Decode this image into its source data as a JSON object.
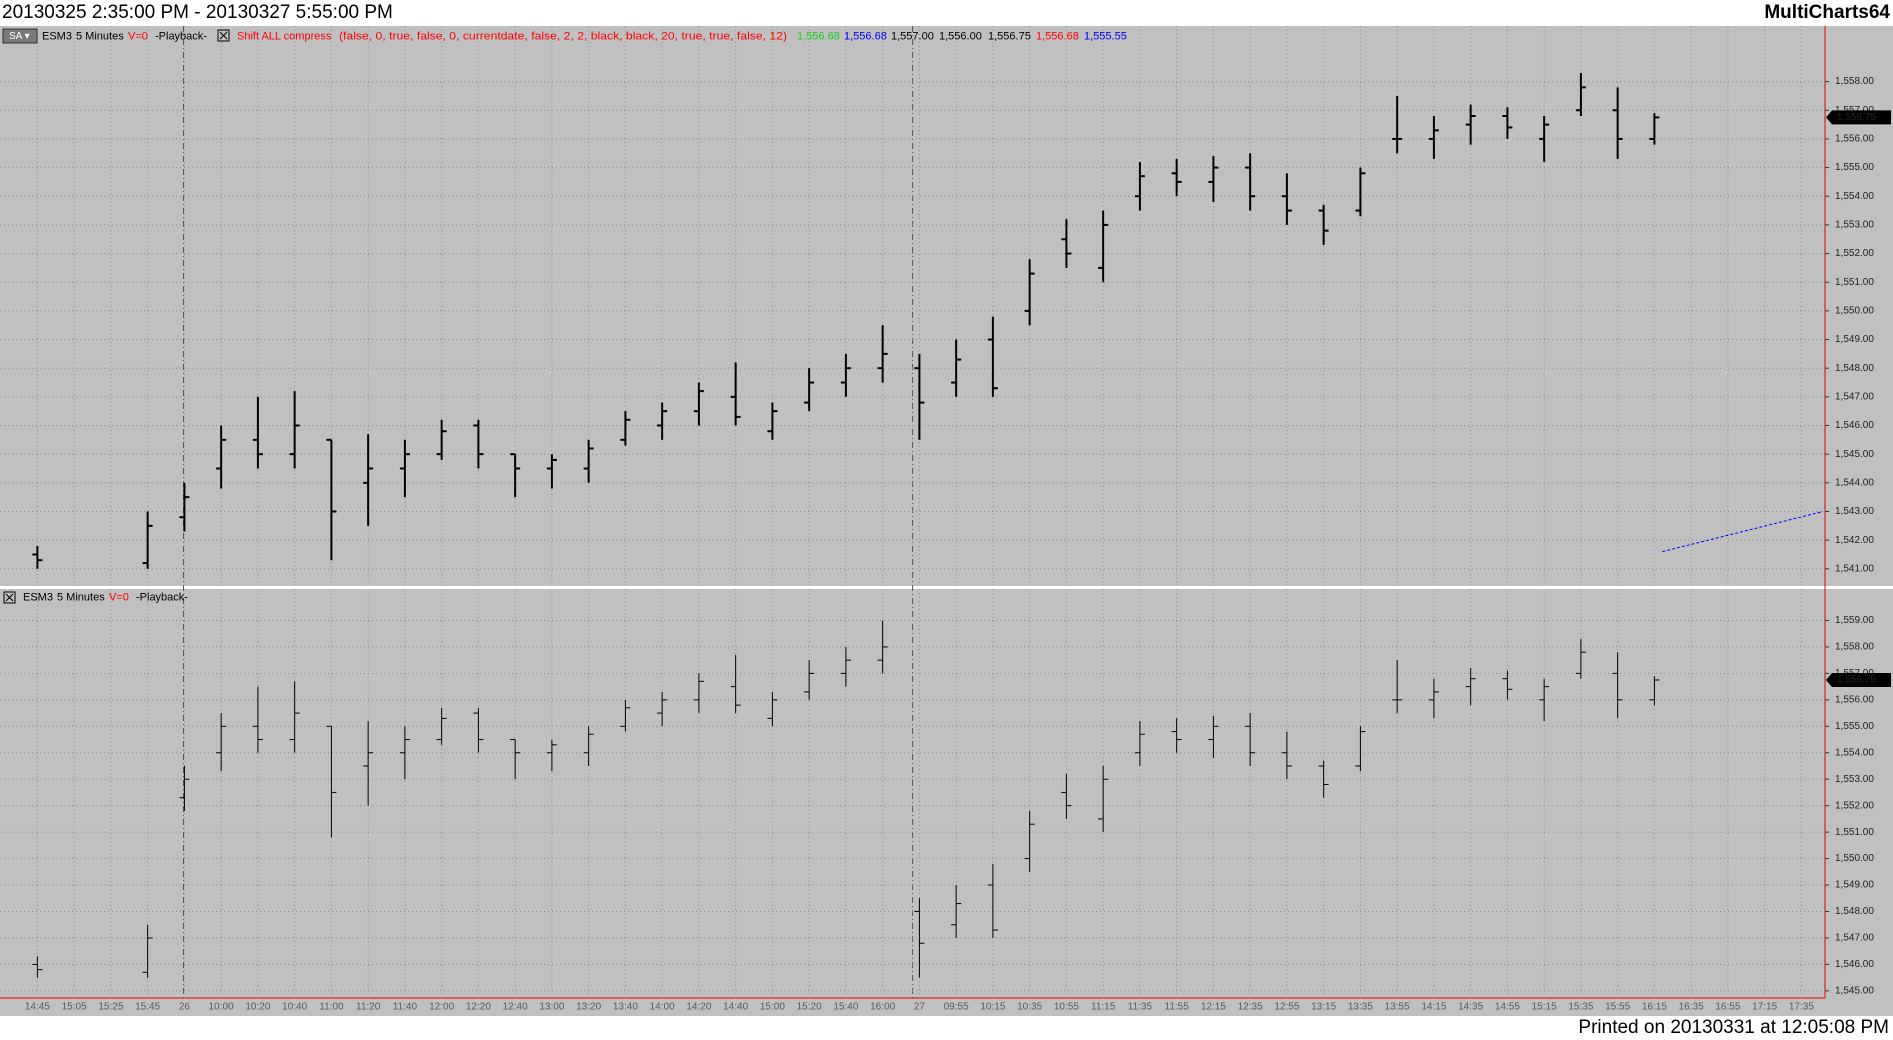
{
  "header": {
    "range": "20130325 2:35:00 PM - 20130327 5:55:00 PM",
    "app": "MultiCharts64"
  },
  "footer": "Printed on 20130331 at 12:05:08 PM",
  "chart_data": [
    {
      "type": "ohlc",
      "grid": true,
      "ylim": [
        1540.4,
        1559.94
      ],
      "yticks": [
        {
          "value": 1541,
          "label": "1,541.00"
        },
        {
          "value": 1542,
          "label": "1,542.00"
        },
        {
          "value": 1543,
          "label": "1,543.00"
        },
        {
          "value": 1544,
          "label": "1,544.00"
        },
        {
          "value": 1545,
          "label": "1,545.00"
        },
        {
          "value": 1546,
          "label": "1,546.00"
        },
        {
          "value": 1547,
          "label": "1,547.00"
        },
        {
          "value": 1548,
          "label": "1,548.00"
        },
        {
          "value": 1549,
          "label": "1,549.00"
        },
        {
          "value": 1550,
          "label": "1,550.00"
        },
        {
          "value": 1551,
          "label": "1,551.00"
        },
        {
          "value": 1552,
          "label": "1,552.00"
        },
        {
          "value": 1553,
          "label": "1,553.00"
        },
        {
          "value": 1554,
          "label": "1,554.00"
        },
        {
          "value": 1555,
          "label": "1,555.00"
        },
        {
          "value": 1556,
          "label": "1,556.00"
        },
        {
          "value": 1557,
          "label": "1,557.00"
        },
        {
          "value": 1558,
          "label": "1,558.00"
        }
      ],
      "series": [
        {
          "name": "ESM3",
          "interval": "5 Minutes",
          "volume": "V=0",
          "mode": "-Playback-",
          "color": "#000000",
          "open": [
            1541.5,
            null,
            null,
            1541.2,
            1542.8,
            1544.5,
            1545.5,
            1545,
            1545.5,
            1544,
            1544.5,
            1545,
            1546,
            1545,
            1544.5,
            1544.5,
            1545.5,
            1546,
            1546.5,
            1547,
            1545.8,
            1546.8,
            1547.5,
            1548,
            1548,
            1547.5,
            1549,
            1550,
            1552.5,
            1551.5,
            1554,
            1554.8,
            1554.5,
            1555,
            1554,
            1553.5,
            1553.5,
            1556,
            1556,
            1556.5,
            1556.8,
            1556,
            1557,
            1557,
            1556,
            null,
            null,
            null,
            null
          ],
          "high": [
            1541.8,
            null,
            null,
            1543,
            1544,
            1546,
            1547,
            1547.2,
            1545.5,
            1545.7,
            1545.5,
            1546.2,
            1546.2,
            1545,
            1545,
            1545.5,
            1546.5,
            1546.8,
            1547.5,
            1548.2,
            1546.8,
            1548,
            1548.5,
            1549.5,
            1548.5,
            1549,
            1549.8,
            1551.8,
            1553.2,
            1553.5,
            1555.2,
            1555.3,
            1555.4,
            1555.5,
            1554.8,
            1553.7,
            1555,
            1557.5,
            1556.8,
            1557.2,
            1557.1,
            1556.8,
            1558.3,
            1557.8,
            1556.9,
            null,
            null,
            null,
            null
          ],
          "low": [
            1541,
            null,
            null,
            1541,
            1542.3,
            1543.8,
            1544.5,
            1544.5,
            1541.3,
            1542.5,
            1543.5,
            1544.8,
            1544.5,
            1543.5,
            1543.8,
            1544,
            1545.3,
            1545.5,
            1546,
            1546,
            1545.5,
            1546.5,
            1547,
            1547.5,
            1545.5,
            1547,
            1547,
            1549.5,
            1551.5,
            1551,
            1553.5,
            1554,
            1553.8,
            1553.5,
            1553,
            1552.3,
            1553.3,
            1555.5,
            1555.3,
            1555.8,
            1556,
            1555.2,
            1556.8,
            1555.3,
            1555.8,
            null,
            null,
            null,
            null
          ],
          "close": [
            1541.3,
            null,
            null,
            1542.5,
            1543.5,
            1545.5,
            1545,
            1546,
            1543,
            1544.5,
            1545,
            1545.8,
            1545,
            1544.5,
            1544.8,
            1545.2,
            1546.2,
            1546.5,
            1547.2,
            1546.3,
            1546.5,
            1547.5,
            1548,
            1548.5,
            1546.8,
            1548.3,
            1547.3,
            1551.3,
            1552,
            1553,
            1554.7,
            1554.5,
            1555,
            1554,
            1553.5,
            1552.8,
            1554.8,
            1556,
            1556.3,
            1556.8,
            1556.4,
            1556.5,
            1557.8,
            1556,
            1556.75,
            null,
            null,
            null,
            null
          ]
        }
      ],
      "last": {
        "value": 1556.75,
        "label": "1,556.75"
      },
      "study": {
        "name": "Shift ALL compress",
        "inputs": "(false,  0,  true,  false,  0,  currentdate,  false,  2,  2,  black,  black,  20,  true,  true,  false,  12)",
        "color": "#ff0000",
        "readouts": [
          {
            "value": 1556.68,
            "label": "1,556.68",
            "color": "#22cc22"
          },
          {
            "value": 1556.68,
            "label": "1,556.68",
            "color": "#0000ff"
          },
          {
            "value": 1557.0,
            "label": "1,557.00",
            "color": "#000000"
          },
          {
            "value": 1556.0,
            "label": "1,556.00",
            "color": "#000000"
          },
          {
            "value": 1556.75,
            "label": "1,556.75",
            "color": "#000000"
          },
          {
            "value": 1556.68,
            "label": "1,556.68",
            "color": "#ff0000"
          },
          {
            "value": 1555.55,
            "label": "1,555.55",
            "color": "#0000ff"
          }
        ]
      },
      "trendline": {
        "color": "#0000ff",
        "values": [
          1541.6,
          1543.0
        ]
      }
    },
    {
      "type": "ohlc",
      "grid": true,
      "ylim": [
        1544.73,
        1560.19
      ],
      "yticks": [
        {
          "value": 1545,
          "label": "1,545.00"
        },
        {
          "value": 1546,
          "label": "1,546.00"
        },
        {
          "value": 1547,
          "label": "1,547.00"
        },
        {
          "value": 1548,
          "label": "1,548.00"
        },
        {
          "value": 1549,
          "label": "1,549.00"
        },
        {
          "value": 1550,
          "label": "1,550.00"
        },
        {
          "value": 1551,
          "label": "1,551.00"
        },
        {
          "value": 1552,
          "label": "1,552.00"
        },
        {
          "value": 1553,
          "label": "1,553.00"
        },
        {
          "value": 1554,
          "label": "1,554.00"
        },
        {
          "value": 1555,
          "label": "1,555.00"
        },
        {
          "value": 1556,
          "label": "1,556.00"
        },
        {
          "value": 1557,
          "label": "1,557.00"
        },
        {
          "value": 1558,
          "label": "1,558.00"
        },
        {
          "value": 1559,
          "label": "1,559.00"
        }
      ],
      "categories": [
        "14:45",
        "15:05",
        "15:25",
        "15:45",
        "26",
        "10:00",
        "10:20",
        "10:40",
        "11:00",
        "11:20",
        "11:40",
        "12:00",
        "12:20",
        "12:40",
        "13:00",
        "13:20",
        "13:40",
        "14:00",
        "14:20",
        "14:40",
        "15:00",
        "15:20",
        "15:40",
        "16:00",
        "27",
        "09:55",
        "10:15",
        "10:35",
        "10:55",
        "11:15",
        "11:35",
        "11:55",
        "12:15",
        "12:35",
        "12:55",
        "13:15",
        "13:35",
        "13:55",
        "14:15",
        "14:35",
        "14:55",
        "15:15",
        "15:35",
        "15:55",
        "16:15",
        "16:35",
        "16:55",
        "17:15",
        "17:35"
      ],
      "series": [
        {
          "name": "ESM3",
          "interval": "5 Minutes",
          "volume": "V=0",
          "mode": "-Playback-",
          "color": "#000000",
          "open": [
            1546,
            null,
            null,
            1545.7,
            1552.3,
            1554,
            1555,
            1554.5,
            1555,
            1553.5,
            1554,
            1554.5,
            1555.5,
            1554.5,
            1554,
            1554,
            1555,
            1555.5,
            1556,
            1556.5,
            1555.3,
            1556.3,
            1557,
            1557.5,
            1548,
            1547.5,
            1549,
            1550,
            1552.5,
            1551.5,
            1554,
            1554.8,
            1554.5,
            1555,
            1554,
            1553.5,
            1553.5,
            1556,
            1556,
            1556.5,
            1556.8,
            1556,
            1557,
            1557,
            1556,
            null,
            null,
            null,
            null
          ],
          "high": [
            1546.3,
            null,
            null,
            1547.5,
            1553.5,
            1555.5,
            1556.5,
            1556.7,
            1555,
            1555.2,
            1555,
            1555.7,
            1555.7,
            1554.5,
            1554.5,
            1555,
            1556,
            1556.3,
            1557,
            1557.7,
            1556.3,
            1557.5,
            1558,
            1559,
            1548.5,
            1549,
            1549.8,
            1551.8,
            1553.2,
            1553.5,
            1555.2,
            1555.3,
            1555.4,
            1555.5,
            1554.8,
            1553.7,
            1555,
            1557.5,
            1556.8,
            1557.2,
            1557.1,
            1556.8,
            1558.3,
            1557.8,
            1556.9,
            null,
            null,
            null,
            null
          ],
          "low": [
            1545.5,
            null,
            null,
            1545.5,
            1551.8,
            1553.3,
            1554,
            1554,
            1550.8,
            1552,
            1553,
            1554.3,
            1554,
            1553,
            1553.3,
            1553.5,
            1554.8,
            1555,
            1555.5,
            1555.5,
            1555,
            1556,
            1556.5,
            1557,
            1545.5,
            1547,
            1547,
            1549.5,
            1551.5,
            1551,
            1553.5,
            1554,
            1553.8,
            1553.5,
            1553,
            1552.3,
            1553.3,
            1555.5,
            1555.3,
            1555.8,
            1556,
            1555.2,
            1556.8,
            1555.3,
            1555.8,
            null,
            null,
            null,
            null
          ],
          "close": [
            1545.8,
            null,
            null,
            1547,
            1553,
            1555,
            1554.5,
            1555.5,
            1552.5,
            1554,
            1554.5,
            1555.3,
            1554.5,
            1554,
            1554.3,
            1554.7,
            1555.7,
            1556,
            1556.7,
            1555.8,
            1556,
            1557,
            1557.5,
            1558,
            1546.8,
            1548.3,
            1547.3,
            1551.3,
            1552,
            1553,
            1554.7,
            1554.5,
            1555,
            1554,
            1553.5,
            1552.8,
            1554.8,
            1556,
            1556.3,
            1556.8,
            1556.4,
            1556.5,
            1557.8,
            1556,
            1556.75,
            null,
            null,
            null,
            null
          ]
        }
      ],
      "last": {
        "value": 1556.75,
        "label": "1,556.75"
      }
    }
  ]
}
